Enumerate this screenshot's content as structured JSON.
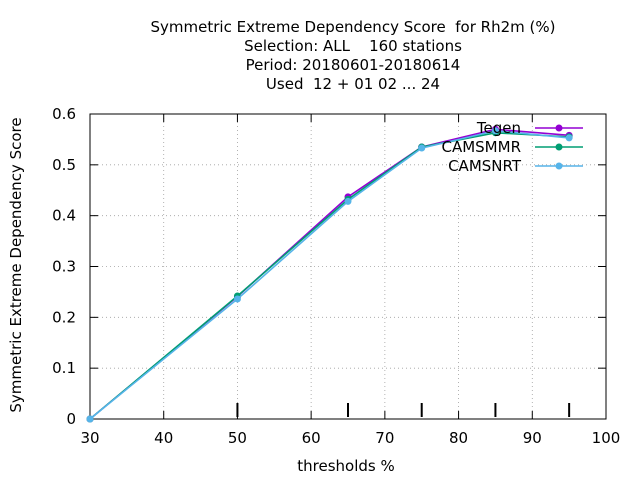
{
  "chart_data": {
    "type": "line",
    "title_lines": [
      "Symmetric Extreme Dependency Score  for Rh2m (%)",
      "Selection: ALL    160 stations",
      "Period: 20180601-20180614",
      "Used  12 + 01 02 ... 24"
    ],
    "xlabel": "thresholds %",
    "ylabel": "Symmetric Extreme Dependency Score",
    "xlim": [
      30,
      100
    ],
    "ylim": [
      0,
      0.6
    ],
    "xticks": [
      "30",
      "40",
      "50",
      "60",
      "70",
      "80",
      "90",
      "100"
    ],
    "yticks": [
      "0",
      "0.1",
      "0.2",
      "0.3",
      "0.4",
      "0.5",
      "0.6"
    ],
    "threshold_marks": [
      50,
      65,
      75,
      85,
      95
    ],
    "grid": true,
    "legend_position": "top-right",
    "series": [
      {
        "name": "Tegen",
        "color": "#9400d3",
        "marker": "circle",
        "x": [
          30,
          50,
          65,
          75,
          85,
          95
        ],
        "y": [
          0.0,
          0.241,
          0.437,
          0.535,
          0.57,
          0.558
        ]
      },
      {
        "name": "CAMSMMR",
        "color": "#009e73",
        "marker": "circle",
        "x": [
          30,
          50,
          65,
          75,
          85,
          95
        ],
        "y": [
          0.0,
          0.242,
          0.432,
          0.535,
          0.563,
          0.555
        ]
      },
      {
        "name": "CAMSNRT",
        "color": "#56b4e9",
        "marker": "circle",
        "x": [
          30,
          50,
          65,
          75,
          85,
          95
        ],
        "y": [
          0.0,
          0.236,
          0.428,
          0.533,
          0.567,
          0.553
        ]
      }
    ]
  }
}
